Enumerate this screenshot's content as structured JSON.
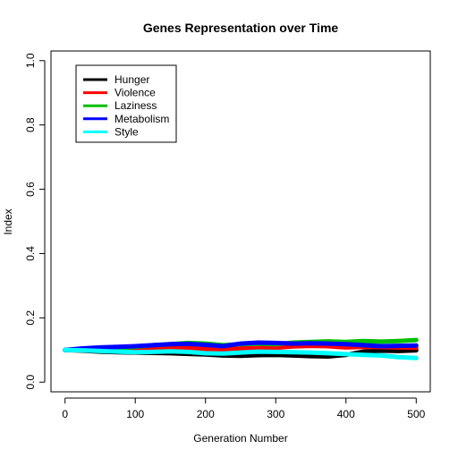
{
  "chart_data": {
    "type": "line",
    "title": "Genes Representation over Time",
    "xlabel": "Generation Number",
    "ylabel": "Index",
    "xlim": [
      -20,
      520
    ],
    "ylim": [
      -0.03,
      1.03
    ],
    "x_ticks": [
      0,
      100,
      200,
      300,
      400,
      500
    ],
    "y_ticks": [
      0.0,
      0.2,
      0.4,
      0.6,
      0.8,
      1.0
    ],
    "x_tick_labels": [
      "0",
      "100",
      "200",
      "300",
      "400",
      "500"
    ],
    "y_tick_labels": [
      "0.0",
      "0.2",
      "0.4",
      "0.6",
      "0.8",
      "1.0"
    ],
    "grid": false,
    "legend_position": "top-left",
    "x": [
      0,
      25,
      50,
      75,
      100,
      125,
      150,
      175,
      200,
      225,
      250,
      275,
      300,
      325,
      350,
      375,
      400,
      425,
      450,
      475,
      500
    ],
    "series": [
      {
        "name": "Hunger",
        "color": "#000000",
        "values": [
          0.1,
          0.098,
          0.095,
          0.093,
          0.092,
          0.091,
          0.09,
          0.088,
          0.086,
          0.083,
          0.082,
          0.084,
          0.085,
          0.083,
          0.081,
          0.08,
          0.085,
          0.095,
          0.098,
          0.097,
          0.099
        ]
      },
      {
        "name": "Violence",
        "color": "#ff0000",
        "values": [
          0.1,
          0.102,
          0.101,
          0.099,
          0.1,
          0.104,
          0.106,
          0.108,
          0.103,
          0.101,
          0.105,
          0.106,
          0.107,
          0.111,
          0.113,
          0.112,
          0.108,
          0.11,
          0.109,
          0.108,
          0.107
        ]
      },
      {
        "name": "Laziness",
        "color": "#00bf00",
        "values": [
          0.1,
          0.103,
          0.104,
          0.106,
          0.11,
          0.115,
          0.118,
          0.122,
          0.12,
          0.115,
          0.118,
          0.12,
          0.118,
          0.123,
          0.125,
          0.127,
          0.125,
          0.128,
          0.126,
          0.128,
          0.131
        ]
      },
      {
        "name": "Metabolism",
        "color": "#0000ff",
        "values": [
          0.1,
          0.105,
          0.108,
          0.11,
          0.112,
          0.115,
          0.118,
          0.119,
          0.116,
          0.112,
          0.12,
          0.123,
          0.122,
          0.12,
          0.121,
          0.12,
          0.118,
          0.115,
          0.112,
          0.113,
          0.114
        ]
      },
      {
        "name": "Style",
        "color": "#00ffff",
        "values": [
          0.1,
          0.099,
          0.097,
          0.095,
          0.093,
          0.094,
          0.096,
          0.094,
          0.09,
          0.089,
          0.092,
          0.095,
          0.094,
          0.093,
          0.092,
          0.09,
          0.087,
          0.085,
          0.083,
          0.078,
          0.075
        ]
      }
    ]
  }
}
